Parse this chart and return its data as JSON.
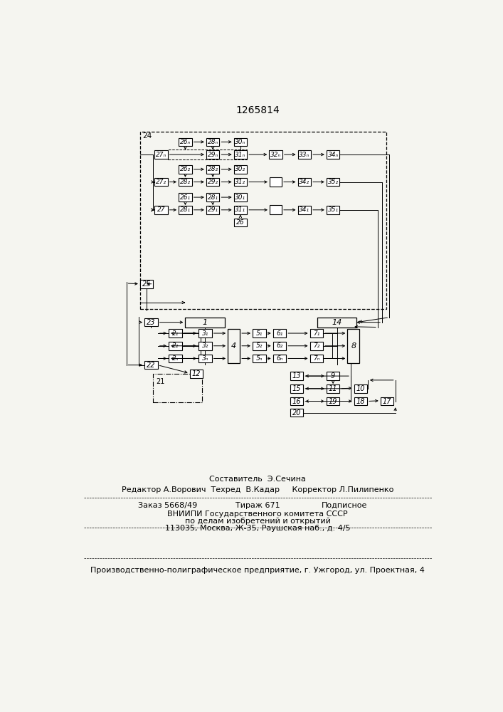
{
  "title": "1265814",
  "bg_color": "#f5f5f0",
  "box_color": "#ffffff",
  "box_edge": "#000000",
  "text_color": "#000000",
  "footer_lines": [
    "Составитель  Э.Сечина",
    "Редактор А.Ворович  Техред  В.Кадар     Корректор Л.Пилипенко",
    "Заказ 5668/49         Тираж 671              Подписное",
    "ВНИИПИ Государственного комитета СССР",
    "по делам изобретений и открытий",
    "113035, Москва, Ж-35, Раушская наб., д. 4/5",
    "Производственно-полиграфическое предприятие, г. Ужгород, ул. Проектная, 4"
  ]
}
